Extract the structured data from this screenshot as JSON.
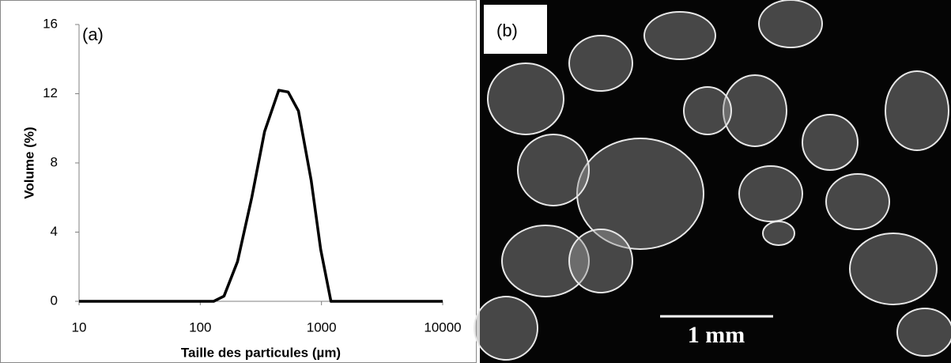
{
  "chart_data": {
    "type": "line",
    "annotation": "(a)",
    "xlabel": "Taille des particules (µm)",
    "ylabel": "Volume (%)",
    "x": [
      10,
      129,
      157,
      203,
      266,
      339,
      444,
      531,
      646,
      822,
      985,
      1197,
      10000
    ],
    "values": [
      0,
      0,
      0.3,
      2.3,
      6,
      9.8,
      12.2,
      12.1,
      11,
      7,
      3,
      0,
      0
    ],
    "color": "#000000",
    "xscale": "log",
    "xlim": [
      10,
      10000
    ],
    "xticks": [
      10,
      100,
      1000,
      10000
    ],
    "ylim": [
      0,
      16
    ],
    "yticks": [
      0,
      4,
      8,
      12,
      16
    ]
  },
  "photo": {
    "label": "(b)",
    "scale_bar": "1 mm"
  }
}
